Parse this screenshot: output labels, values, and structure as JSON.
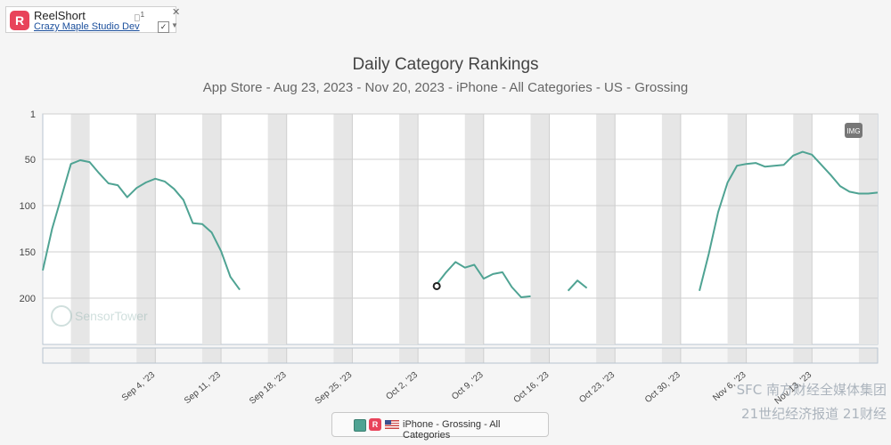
{
  "app": {
    "name": "ReelShort",
    "developer": "Crazy Maple Studio Dev",
    "logo_letter": "R",
    "badge": "1",
    "apple_icon": "apple-icon"
  },
  "header": {
    "title": "Daily Category Rankings",
    "subtitle": "App Store - Aug 23, 2023 - Nov 20, 2023 - iPhone - All Categories - US - Grossing"
  },
  "img_badge": "IMG",
  "watermark": {
    "sensortower": "SensorTower",
    "sfc_top": "SFC 南方财经全媒体集团",
    "sfc_bottom": "21世纪经济报道 21财经"
  },
  "legend": {
    "label": "iPhone - Grossing - All Categories",
    "color": "#4fa393"
  },
  "chart_data": {
    "type": "line",
    "title": "Daily Category Rankings",
    "subtitle": "App Store - Aug 23, 2023 - Nov 20, 2023 - iPhone - All Categories - US - Grossing",
    "x_start": "2023-08-23",
    "x_end": "2023-11-20",
    "ylim": [
      1,
      250
    ],
    "y_inverted": true,
    "yticks": [
      1,
      50,
      100,
      150,
      200
    ],
    "xticks": [
      {
        "date": "2023-09-04",
        "label": "Sep 4, '23"
      },
      {
        "date": "2023-09-11",
        "label": "Sep 11, '23"
      },
      {
        "date": "2023-09-18",
        "label": "Sep 18, '23"
      },
      {
        "date": "2023-09-25",
        "label": "Sep 25, '23"
      },
      {
        "date": "2023-10-02",
        "label": "Oct 2, '23"
      },
      {
        "date": "2023-10-09",
        "label": "Oct 9, '23"
      },
      {
        "date": "2023-10-16",
        "label": "Oct 16, '23"
      },
      {
        "date": "2023-10-23",
        "label": "Oct 23, '23"
      },
      {
        "date": "2023-10-30",
        "label": "Oct 30, '23"
      },
      {
        "date": "2023-11-06",
        "label": "Nov 6, '23"
      },
      {
        "date": "2023-11-13",
        "label": "Nov 13, '23"
      }
    ],
    "weekends": [
      "2023-08-26",
      "2023-09-02",
      "2023-09-09",
      "2023-09-16",
      "2023-09-23",
      "2023-09-30",
      "2023-10-07",
      "2023-10-14",
      "2023-10-21",
      "2023-10-28",
      "2023-11-04",
      "2023-11-11",
      "2023-11-18"
    ],
    "grid": true,
    "series": [
      {
        "name": "iPhone - Grossing - All Categories",
        "color": "#4fa393",
        "segments": [
          [
            [
              "2023-08-23",
              170
            ],
            [
              "2023-08-24",
              125
            ],
            [
              "2023-08-25",
              90
            ],
            [
              "2023-08-26",
              55
            ],
            [
              "2023-08-27",
              51
            ],
            [
              "2023-08-28",
              53
            ],
            [
              "2023-08-29",
              65
            ],
            [
              "2023-08-30",
              76
            ],
            [
              "2023-08-31",
              78
            ],
            [
              "2023-09-01",
              91
            ],
            [
              "2023-09-02",
              81
            ],
            [
              "2023-09-03",
              75
            ],
            [
              "2023-09-04",
              71
            ],
            [
              "2023-09-05",
              74
            ],
            [
              "2023-09-06",
              82
            ],
            [
              "2023-09-07",
              94
            ],
            [
              "2023-09-08",
              119
            ],
            [
              "2023-09-09",
              120
            ],
            [
              "2023-09-10",
              129
            ],
            [
              "2023-09-11",
              149
            ],
            [
              "2023-09-12",
              177
            ],
            [
              "2023-09-13",
              191
            ]
          ],
          [
            [
              "2023-10-04",
              185
            ],
            [
              "2023-10-05",
              172
            ],
            [
              "2023-10-06",
              161
            ],
            [
              "2023-10-07",
              167
            ],
            [
              "2023-10-08",
              164
            ],
            [
              "2023-10-09",
              179
            ],
            [
              "2023-10-10",
              174
            ],
            [
              "2023-10-11",
              172
            ],
            [
              "2023-10-12",
              188
            ],
            [
              "2023-10-13",
              199
            ],
            [
              "2023-10-14",
              198
            ]
          ],
          [
            [
              "2023-10-18",
              192
            ],
            [
              "2023-10-19",
              181
            ],
            [
              "2023-10-20",
              189
            ]
          ],
          [
            [
              "2023-11-01",
              192
            ],
            [
              "2023-11-02",
              152
            ],
            [
              "2023-11-03",
              107
            ],
            [
              "2023-11-04",
              75
            ],
            [
              "2023-11-05",
              57
            ],
            [
              "2023-11-06",
              55
            ],
            [
              "2023-11-07",
              54
            ],
            [
              "2023-11-08",
              58
            ],
            [
              "2023-11-09",
              57
            ],
            [
              "2023-11-10",
              56
            ],
            [
              "2023-11-11",
              46
            ],
            [
              "2023-11-12",
              42
            ],
            [
              "2023-11-13",
              45
            ],
            [
              "2023-11-14",
              56
            ],
            [
              "2023-11-15",
              67
            ],
            [
              "2023-11-16",
              79
            ],
            [
              "2023-11-17",
              85
            ],
            [
              "2023-11-18",
              87
            ],
            [
              "2023-11-19",
              87
            ],
            [
              "2023-11-20",
              86
            ]
          ]
        ]
      },
      {
        "name": "",
        "color": "#222222",
        "marker": "circle",
        "points": [
          [
            "2023-10-04",
            187
          ]
        ]
      }
    ]
  }
}
